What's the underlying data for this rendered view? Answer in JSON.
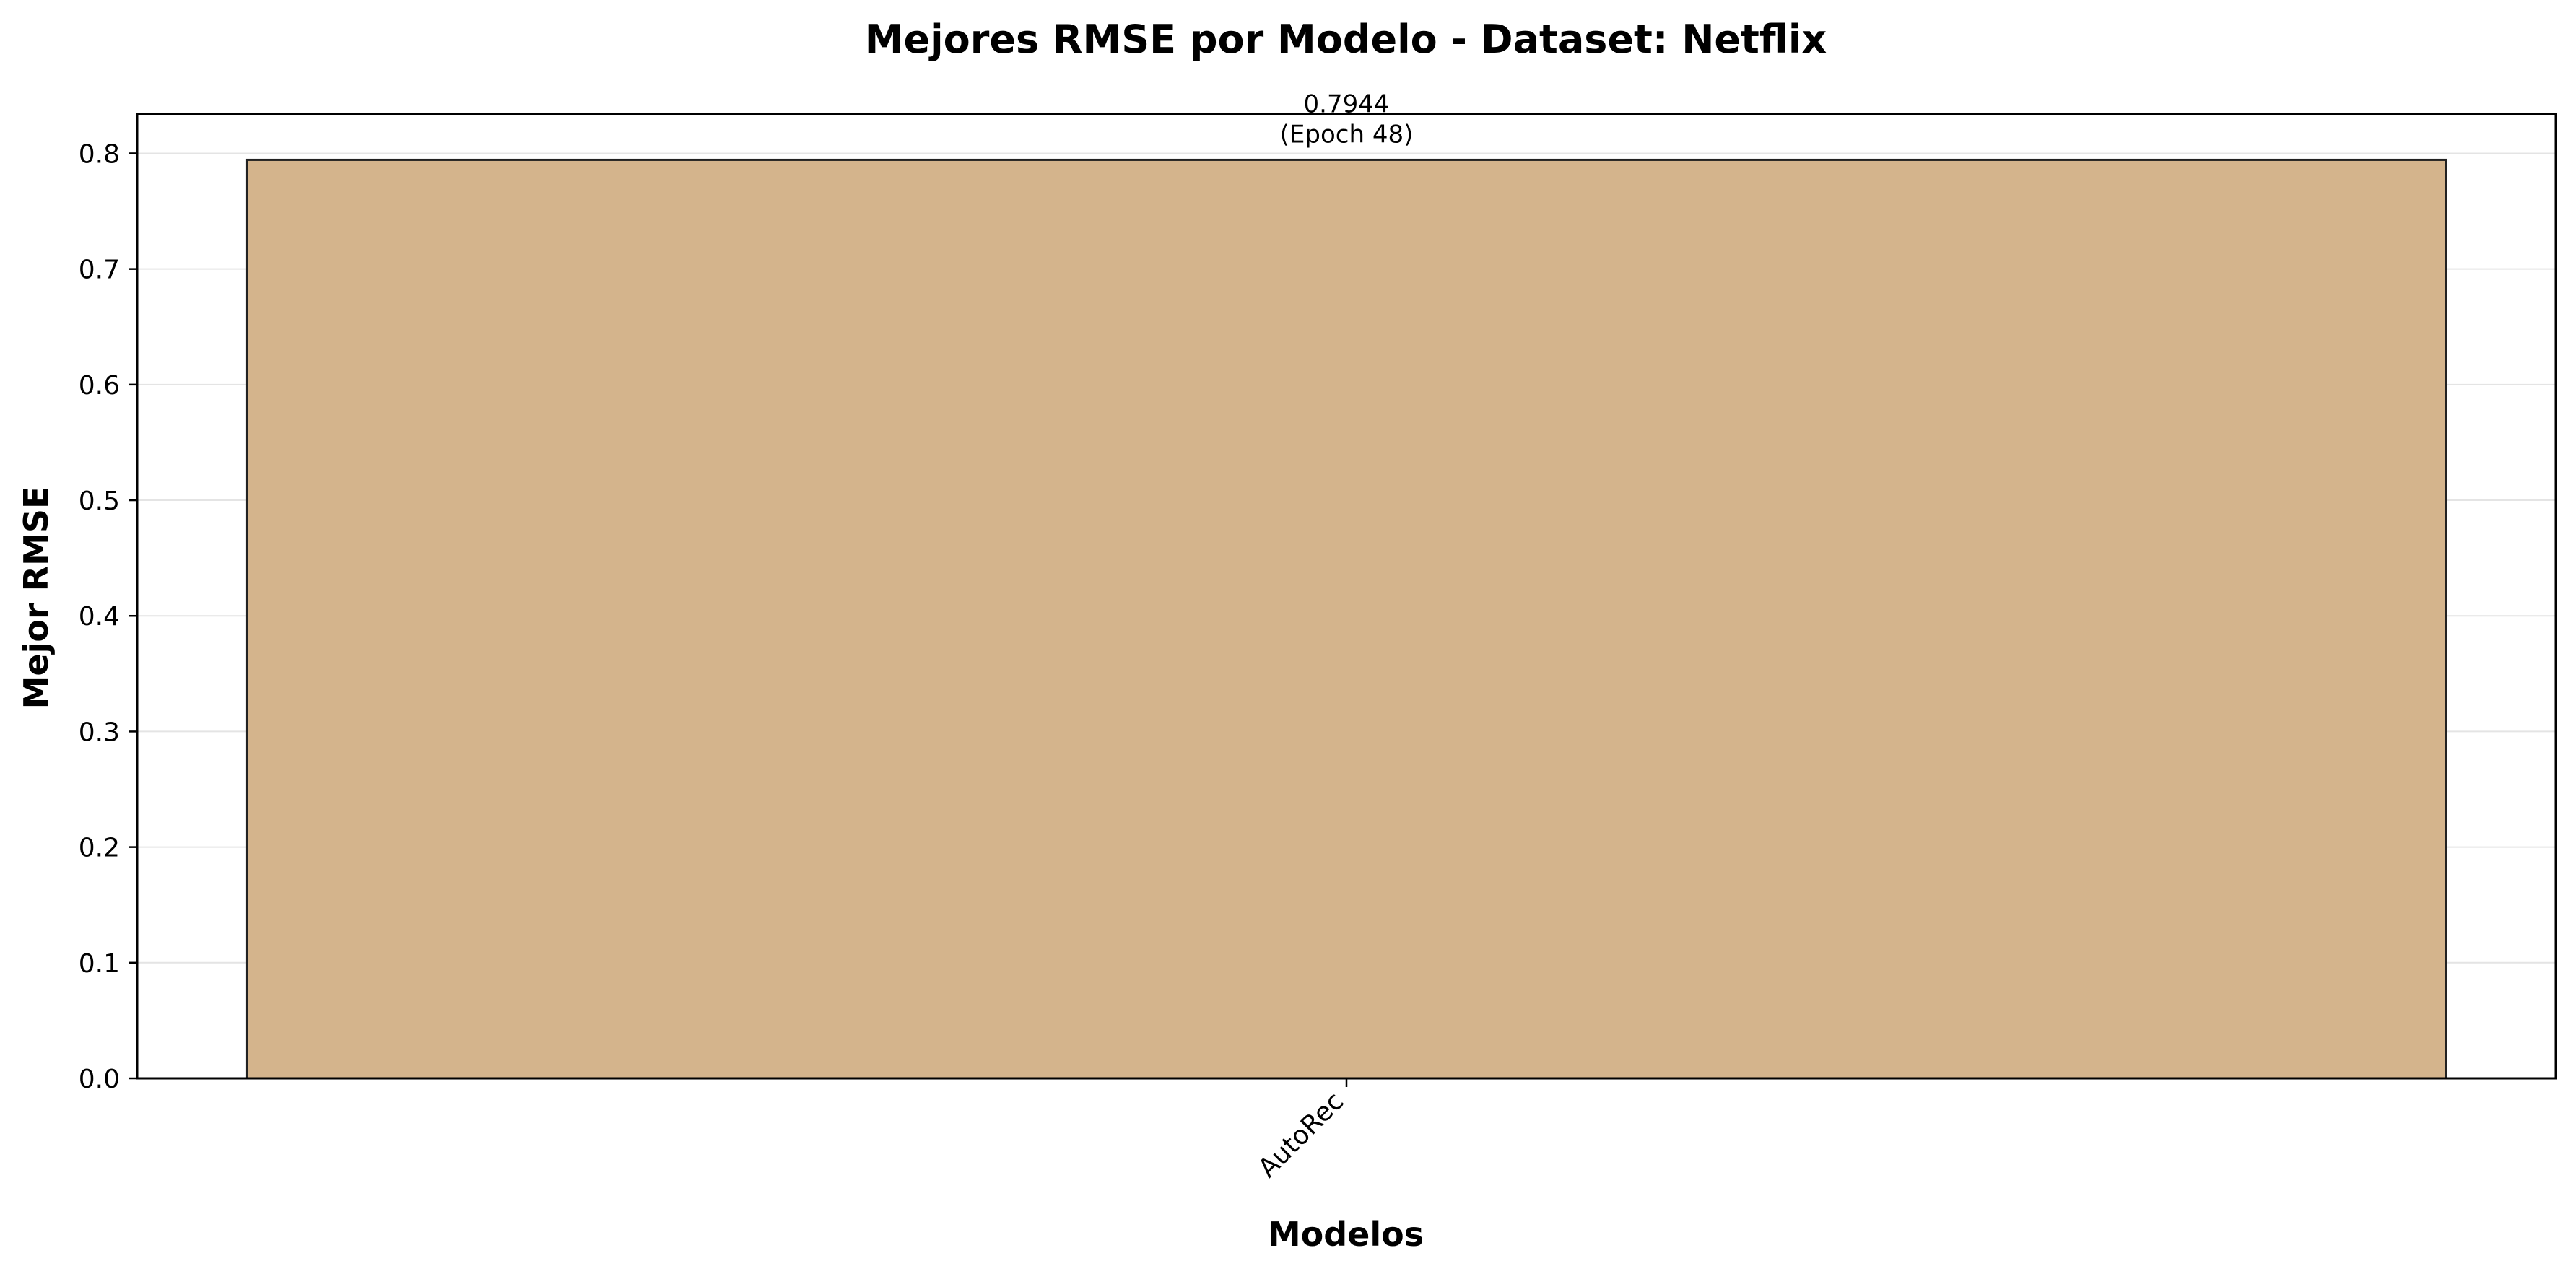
{
  "chart_data": {
    "type": "bar",
    "title": "Mejores RMSE por Modelo - Dataset: Netflix",
    "xlabel": "Modelos",
    "ylabel": "Mejor RMSE",
    "categories": [
      "AutoRec"
    ],
    "values": [
      0.7944
    ],
    "value_labels": [
      "0.7944"
    ],
    "epoch_labels": [
      "(Epoch 48)"
    ],
    "ylim": [
      0,
      0.834
    ],
    "yticks": [
      0.0,
      0.1,
      0.2,
      0.3,
      0.4,
      0.5,
      0.6,
      0.7,
      0.8
    ],
    "ytick_labels": [
      "0.0",
      "0.1",
      "0.2",
      "0.3",
      "0.4",
      "0.5",
      "0.6",
      "0.7",
      "0.8"
    ],
    "grid": "y",
    "bar_color": "#d4b48c",
    "bar_edge_color": "#222222"
  }
}
